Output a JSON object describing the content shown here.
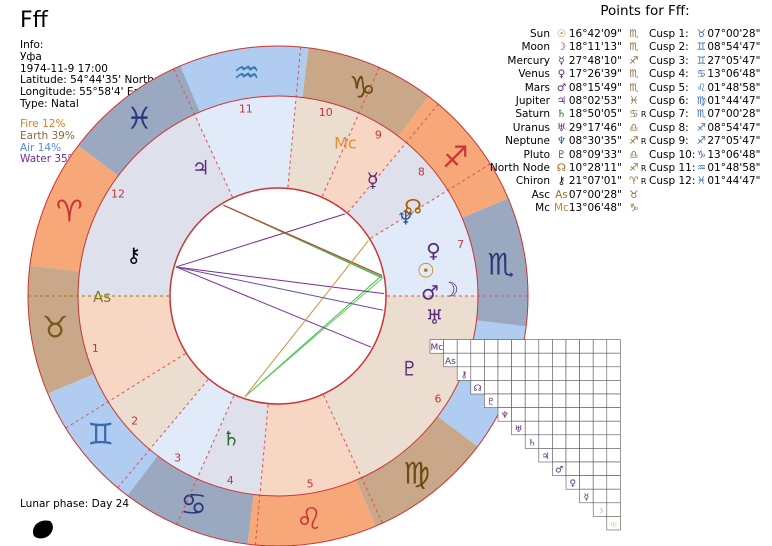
{
  "header": {
    "title": "Fff"
  },
  "info": {
    "label": "Info:",
    "lines": [
      "Уфа",
      "1974-11-9 17:00",
      "Latitude: 54°44'35' North",
      "Longitude: 55°58'4' East",
      "Type: Natal"
    ]
  },
  "elements": [
    {
      "text": "Fire 12%",
      "color": "#e07a20"
    },
    {
      "text": "Earth 39%",
      "color": "#8a6a3a"
    },
    {
      "text": "Air 14%",
      "color": "#5a8ad8"
    },
    {
      "text": "Water 35%",
      "color": "#7a2a9a"
    }
  ],
  "lunar_phase": "Lunar phase: Day 24",
  "points_title": "Points for Fff:",
  "planets": [
    {
      "name": "Sun",
      "glyph": "☉",
      "sign": "♏",
      "pos": "16°42'09\"",
      "retro": "",
      "color": "#c47a00"
    },
    {
      "name": "Moon",
      "glyph": "☽",
      "sign": "♏",
      "pos": "18°11'13\"",
      "retro": "",
      "color": "#5a2a7a"
    },
    {
      "name": "Mercury",
      "glyph": "☿",
      "sign": "♐",
      "pos": "27°48'10\"",
      "retro": "",
      "color": "#5a2a7a"
    },
    {
      "name": "Venus",
      "glyph": "♀",
      "sign": "♏",
      "pos": "17°26'39\"",
      "retro": "",
      "color": "#5a2a7a"
    },
    {
      "name": "Mars",
      "glyph": "♂",
      "sign": "♏",
      "pos": "08°15'49\"",
      "retro": "",
      "color": "#5a2a7a"
    },
    {
      "name": "Jupiter",
      "glyph": "♃",
      "sign": "♓",
      "pos": "08°02'53\"",
      "retro": "",
      "color": "#5a2a7a"
    },
    {
      "name": "Saturn",
      "glyph": "♄",
      "sign": "♋",
      "pos": "18°50'05\"",
      "retro": "R",
      "color": "#2a6a2a"
    },
    {
      "name": "Uranus",
      "glyph": "♅",
      "sign": "♎",
      "pos": "29°17'46\"",
      "retro": "",
      "color": "#5a2a7a"
    },
    {
      "name": "Neptune",
      "glyph": "♆",
      "sign": "♐",
      "pos": "08°30'35\"",
      "retro": "R",
      "color": "#2a5a9a"
    },
    {
      "name": "Pluto",
      "glyph": "♇",
      "sign": "♎",
      "pos": "08°09'33\"",
      "retro": "",
      "color": "#5a2a7a"
    },
    {
      "name": "North Node",
      "glyph": "☊",
      "sign": "♐",
      "pos": "10°28'11\"",
      "retro": "R",
      "color": "#b05a00"
    },
    {
      "name": "Chiron",
      "glyph": "⚷",
      "sign": "♈",
      "pos": "21°07'01\"",
      "retro": "R",
      "color": "#000000"
    },
    {
      "name": "Asc",
      "glyph": "As",
      "sign": "♉",
      "pos": "07°00'28\"",
      "retro": "",
      "color": "#8a7a20"
    },
    {
      "name": "Mc",
      "glyph": "Mc",
      "sign": "♑",
      "pos": "13°06'48\"",
      "retro": "",
      "color": "#d08020"
    }
  ],
  "cusps": [
    {
      "label": "Cusp 1:",
      "sign": "♉",
      "pos": "07°00'28\""
    },
    {
      "label": "Cusp 2:",
      "sign": "♊",
      "pos": "08°54'47\""
    },
    {
      "label": "Cusp 3:",
      "sign": "♊",
      "pos": "27°05'47\""
    },
    {
      "label": "Cusp 4:",
      "sign": "♋",
      "pos": "13°06'48\""
    },
    {
      "label": "Cusp 5:",
      "sign": "♌",
      "pos": "01°48'58\""
    },
    {
      "label": "Cusp 6:",
      "sign": "♍",
      "pos": "01°44'47\""
    },
    {
      "label": "Cusp 7:",
      "sign": "♏",
      "pos": "07°00'28\""
    },
    {
      "label": "Cusp 8:",
      "sign": "♐",
      "pos": "08°54'47\""
    },
    {
      "label": "Cusp 9:",
      "sign": "♐",
      "pos": "27°05'47\""
    },
    {
      "label": "Cusp 10:",
      "sign": "♑",
      "pos": "13°06'48\""
    },
    {
      "label": "Cusp 11:",
      "sign": "♒",
      "pos": "01°48'58\""
    },
    {
      "label": "Cusp 12:",
      "sign": "♓",
      "pos": "01°44'47\""
    }
  ],
  "wheel": {
    "signs": [
      {
        "glyph": "♈",
        "color": "#cc3333"
      },
      {
        "glyph": "♉",
        "color": "#7a5a1a"
      },
      {
        "glyph": "♊",
        "color": "#3a6ab0"
      },
      {
        "glyph": "♋",
        "color": "#2a3a7a"
      },
      {
        "glyph": "♌",
        "color": "#cc3333"
      },
      {
        "glyph": "♍",
        "color": "#6a4a10"
      },
      {
        "glyph": "♎",
        "color": "#3a7ab0"
      },
      {
        "glyph": "♏",
        "color": "#2a3a7a"
      },
      {
        "glyph": "♐",
        "color": "#cc3333"
      },
      {
        "glyph": "♑",
        "color": "#6a4a10"
      },
      {
        "glyph": "♒",
        "color": "#3a7ab0"
      },
      {
        "glyph": "♓",
        "color": "#2a3a7a"
      }
    ],
    "sign_colors": [
      "#f6a878",
      "#c8a888",
      "#b0ccf0",
      "#9aa8c0"
    ],
    "house_numbers": [
      "1",
      "2",
      "3",
      "4",
      "5",
      "6",
      "7",
      "8",
      "9",
      "10",
      "11",
      "12"
    ],
    "angle_labels": {
      "asc": "As",
      "mc": "Mc"
    }
  },
  "aspect_grid": {
    "row_glyphs": [
      "☉",
      "☽",
      "☿",
      "♀",
      "♂",
      "♃",
      "♄",
      "♅",
      "♆",
      "♇",
      "☊",
      "⚷",
      "As",
      "Mc"
    ]
  }
}
